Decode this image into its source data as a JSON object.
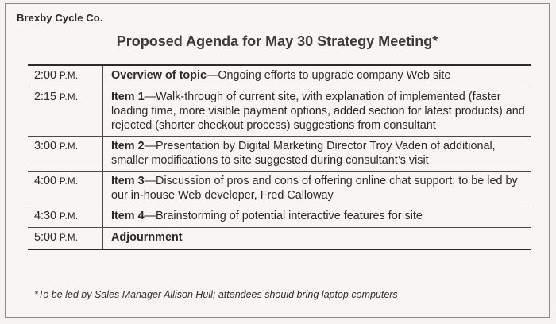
{
  "company": "Brexby Cycle Co.",
  "title": "Proposed Agenda for May 30 Strategy Meeting*",
  "agenda": [
    {
      "time": "2:00",
      "ampm": "P.M.",
      "label": "Overview of topic",
      "text": "—Ongoing efforts to upgrade company Web site"
    },
    {
      "time": "2:15",
      "ampm": "P.M.",
      "label": "Item 1",
      "text": "—Walk-through of current site, with explanation of implemented (faster loading time, more visible payment options, added section for latest products) and rejected (shorter checkout process) suggestions from consultant"
    },
    {
      "time": "3:00",
      "ampm": "P.M.",
      "label": "Item 2",
      "text": "—Presentation by Digital Marketing Director Troy Vaden of additional, smaller modifications to site suggested during consultant’s visit"
    },
    {
      "time": "4:00",
      "ampm": "P.M.",
      "label": "Item 3",
      "text": "—Discussion of pros and cons of offering online chat support; to be led by our in-house Web developer, Fred Calloway"
    },
    {
      "time": "4:30",
      "ampm": "P.M.",
      "label": "Item 4",
      "text": "—Brainstorming of potential interactive features for site"
    },
    {
      "time": "5:00",
      "ampm": "P.M.",
      "label": "Adjournment",
      "text": ""
    }
  ],
  "footnote": "*To be led by Sales Manager Allison Hull; attendees should bring laptop computers"
}
